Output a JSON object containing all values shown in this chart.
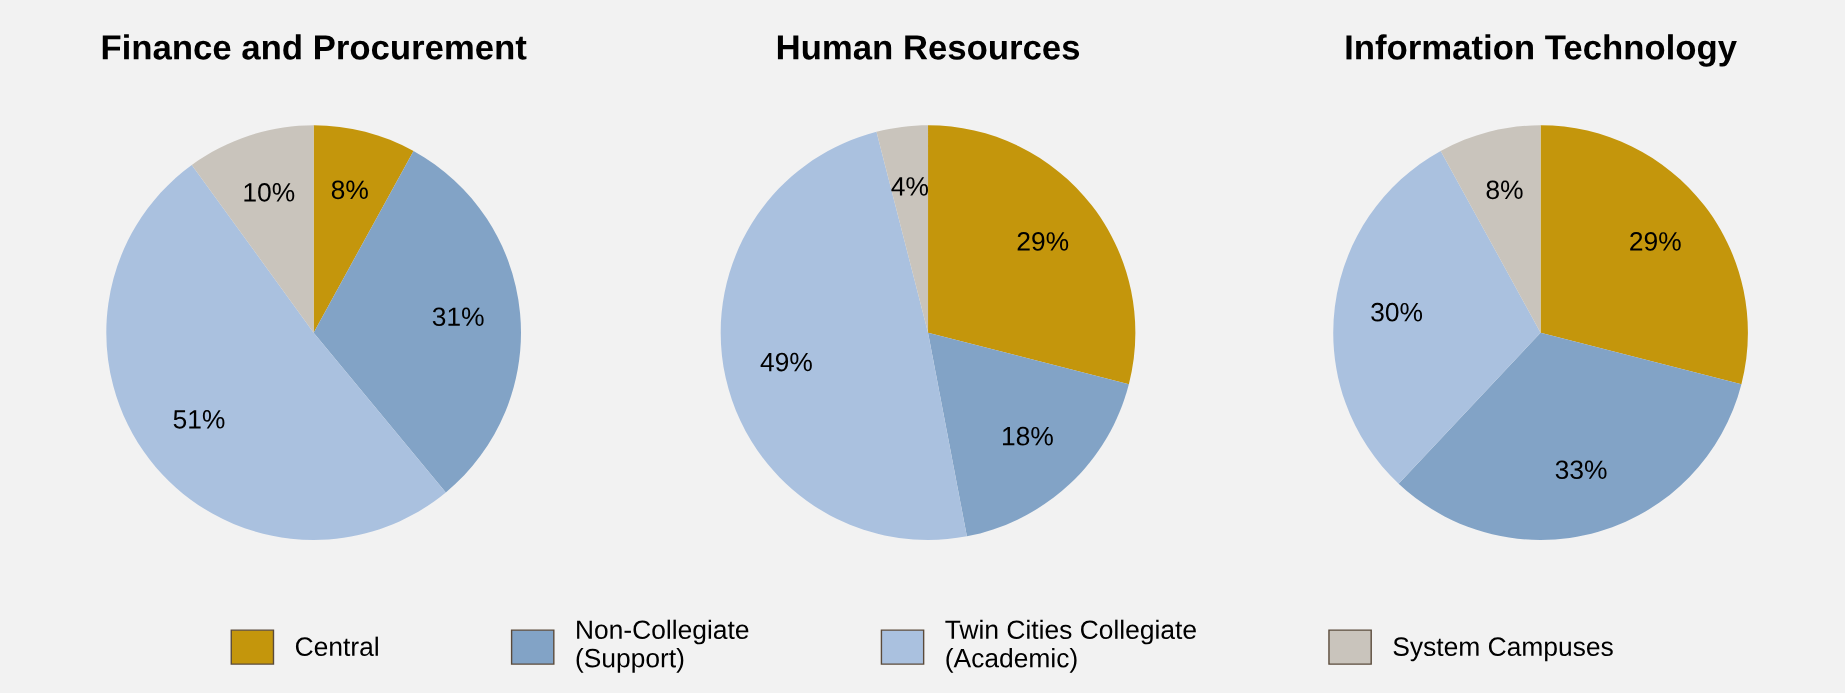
{
  "chart_data": [
    {
      "type": "pie",
      "title": "Finance and Procurement",
      "categories": [
        "Central",
        "Non-Collegiate\n(Support)",
        "Twin Cities Collegiate\n(Academic)",
        "System Campuses"
      ],
      "values": [
        8,
        31,
        51,
        10
      ],
      "value_labels": [
        "8%",
        "31%",
        "51%",
        "10%"
      ],
      "colors": [
        "#c4960c",
        "#82a3c6",
        "#aac1df",
        "#c9c4bc"
      ],
      "legend": "bottom"
    },
    {
      "type": "pie",
      "title": "Human Resources",
      "categories": [
        null,
        null,
        null,
        null
      ],
      "values": [
        29,
        18,
        49,
        4
      ],
      "value_labels": [
        "29%",
        "18%",
        "49%",
        "4%"
      ],
      "colors": [
        "#c4960c",
        "#82a3c6",
        "#aac1df",
        "#c9c4bc"
      ]
    },
    {
      "type": "pie",
      "title": "Information Technology",
      "categories": [
        null,
        null,
        null,
        null
      ],
      "values": [
        29,
        33,
        30,
        8
      ],
      "value_labels": [
        "29%",
        "33%",
        "30%",
        "8%"
      ],
      "colors": [
        "#c4960c",
        "#82a3c6",
        "#aac1df",
        "#c9c4bc"
      ]
    }
  ]
}
